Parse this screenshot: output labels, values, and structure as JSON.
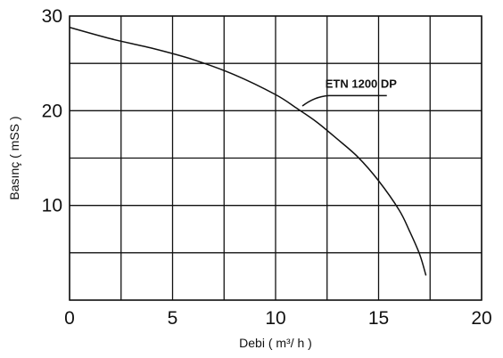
{
  "chart_data": {
    "type": "line",
    "xlabel": "Debi ( m³/ h )",
    "ylabel": "Basınç ( mSS )",
    "xlim": [
      0,
      20
    ],
    "ylim": [
      0,
      30
    ],
    "x_ticks": [
      "0",
      "5",
      "10",
      "15",
      "20"
    ],
    "y_ticks": [
      "10",
      "20",
      "30"
    ],
    "grid_x_values": [
      0,
      2.5,
      5,
      7.5,
      10,
      12.5,
      15,
      17.5,
      20
    ],
    "grid_y_values": [
      0,
      5,
      10,
      15,
      20,
      25,
      30
    ],
    "grid": true,
    "series": [
      {
        "name": "ETN 1200 DP",
        "x": [
          0,
          2,
          4,
          6,
          8,
          10,
          11,
          12,
          13,
          14,
          15,
          16,
          16.5,
          17,
          17.3
        ],
        "y": [
          28.8,
          27.6,
          26.6,
          25.4,
          23.8,
          21.7,
          20.3,
          18.8,
          17.0,
          15.1,
          12.6,
          9.5,
          7.3,
          4.8,
          2.6
        ]
      }
    ],
    "annotation": {
      "text": "ETN 1200 DP",
      "x": 12.5,
      "y": 21.6
    }
  }
}
